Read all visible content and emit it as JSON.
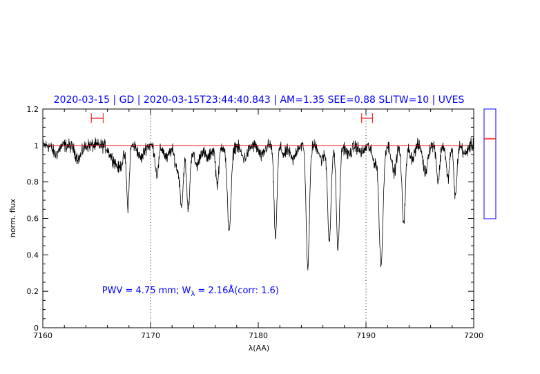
{
  "chart_data": {
    "type": "line",
    "title": "2020-03-15 | GD | 2020-03-15T23:44:40.843 | AM=1.35  SEE=0.88  SLITW=10 | UVES",
    "xlabel": "λ(AA)",
    "ylabel": "norm. flux",
    "xlim": [
      7160,
      7200
    ],
    "ylim": [
      0,
      1.2
    ],
    "xticks": [
      7160,
      7170,
      7180,
      7190,
      7200
    ],
    "xtick_labels": [
      "7160",
      "7170",
      "7180",
      "7190",
      "7200"
    ],
    "yticks": [
      0,
      0.2,
      0.4,
      0.6,
      0.8,
      1,
      1.2
    ],
    "ytick_labels": [
      "0",
      "0.2",
      "0.4",
      "0.6",
      "0.8",
      "1",
      "1.2"
    ],
    "grid": false,
    "continuum_level": 1.0,
    "vertical_reference_lines": [
      7170,
      7190
    ],
    "marker_ranges": [
      {
        "x": [
          7164.5,
          7165.6
        ],
        "y": 1.15
      },
      {
        "x": [
          7189.6,
          7190.6
        ],
        "y": 1.15
      }
    ],
    "annotation": {
      "prefix": "PWV = 4.75 mm; W",
      "subscript": "λ",
      "suffix": " = 2.16Å(corr: 1.6)",
      "x": 7165.5,
      "y": 0.19
    },
    "absorption_lines": [
      {
        "x": 7161.2,
        "depth": 0.05,
        "width": 0.25
      },
      {
        "x": 7163.3,
        "depth": 0.07,
        "width": 0.3
      },
      {
        "x": 7166.4,
        "depth": 0.05,
        "width": 0.3
      },
      {
        "x": 7167.1,
        "depth": 0.12,
        "width": 0.35
      },
      {
        "x": 7167.9,
        "depth": 0.33,
        "width": 0.12
      },
      {
        "x": 7169.1,
        "depth": 0.07,
        "width": 0.25
      },
      {
        "x": 7170.6,
        "depth": 0.16,
        "width": 0.16
      },
      {
        "x": 7171.5,
        "depth": 0.07,
        "width": 0.25
      },
      {
        "x": 7172.5,
        "depth": 0.13,
        "width": 0.25
      },
      {
        "x": 7172.9,
        "depth": 0.29,
        "width": 0.15
      },
      {
        "x": 7173.5,
        "depth": 0.35,
        "width": 0.15
      },
      {
        "x": 7174.3,
        "depth": 0.11,
        "width": 0.25
      },
      {
        "x": 7175.3,
        "depth": 0.07,
        "width": 0.3
      },
      {
        "x": 7176.2,
        "depth": 0.21,
        "width": 0.15
      },
      {
        "x": 7177.3,
        "depth": 0.46,
        "width": 0.18
      },
      {
        "x": 7178.7,
        "depth": 0.07,
        "width": 0.3
      },
      {
        "x": 7180.3,
        "depth": 0.06,
        "width": 0.25
      },
      {
        "x": 7181.6,
        "depth": 0.5,
        "width": 0.14
      },
      {
        "x": 7182.4,
        "depth": 0.05,
        "width": 0.2
      },
      {
        "x": 7183.2,
        "depth": 0.08,
        "width": 0.25
      },
      {
        "x": 7184.6,
        "depth": 0.67,
        "width": 0.15
      },
      {
        "x": 7185.9,
        "depth": 0.08,
        "width": 0.22
      },
      {
        "x": 7186.6,
        "depth": 0.52,
        "width": 0.16
      },
      {
        "x": 7187.4,
        "depth": 0.57,
        "width": 0.15
      },
      {
        "x": 7188.4,
        "depth": 0.05,
        "width": 0.25
      },
      {
        "x": 7189.6,
        "depth": 0.04,
        "width": 0.25
      },
      {
        "x": 7190.8,
        "depth": 0.09,
        "width": 0.25
      },
      {
        "x": 7191.4,
        "depth": 0.65,
        "width": 0.18
      },
      {
        "x": 7192.6,
        "depth": 0.15,
        "width": 0.2
      },
      {
        "x": 7193.5,
        "depth": 0.42,
        "width": 0.16
      },
      {
        "x": 7194.3,
        "depth": 0.07,
        "width": 0.2
      },
      {
        "x": 7195.5,
        "depth": 0.15,
        "width": 0.2
      },
      {
        "x": 7196.7,
        "depth": 0.2,
        "width": 0.14
      },
      {
        "x": 7197.6,
        "depth": 0.18,
        "width": 0.15
      },
      {
        "x": 7198.3,
        "depth": 0.28,
        "width": 0.14
      },
      {
        "x": 7199.2,
        "depth": 0.05,
        "width": 0.2
      }
    ],
    "noise_amplitude": 0.022,
    "sample_step": 0.025,
    "side_panel": {
      "ylim": [
        0,
        1.2
      ],
      "red_lines": [
        1.035,
        1.04
      ]
    }
  },
  "colors": {
    "title": "#0000ff",
    "annotation": "#0000ff",
    "spectrum": "#000000",
    "continuum": "#ff0000",
    "markers": "#ff0000",
    "side_panel_frame": "#0000ff"
  }
}
